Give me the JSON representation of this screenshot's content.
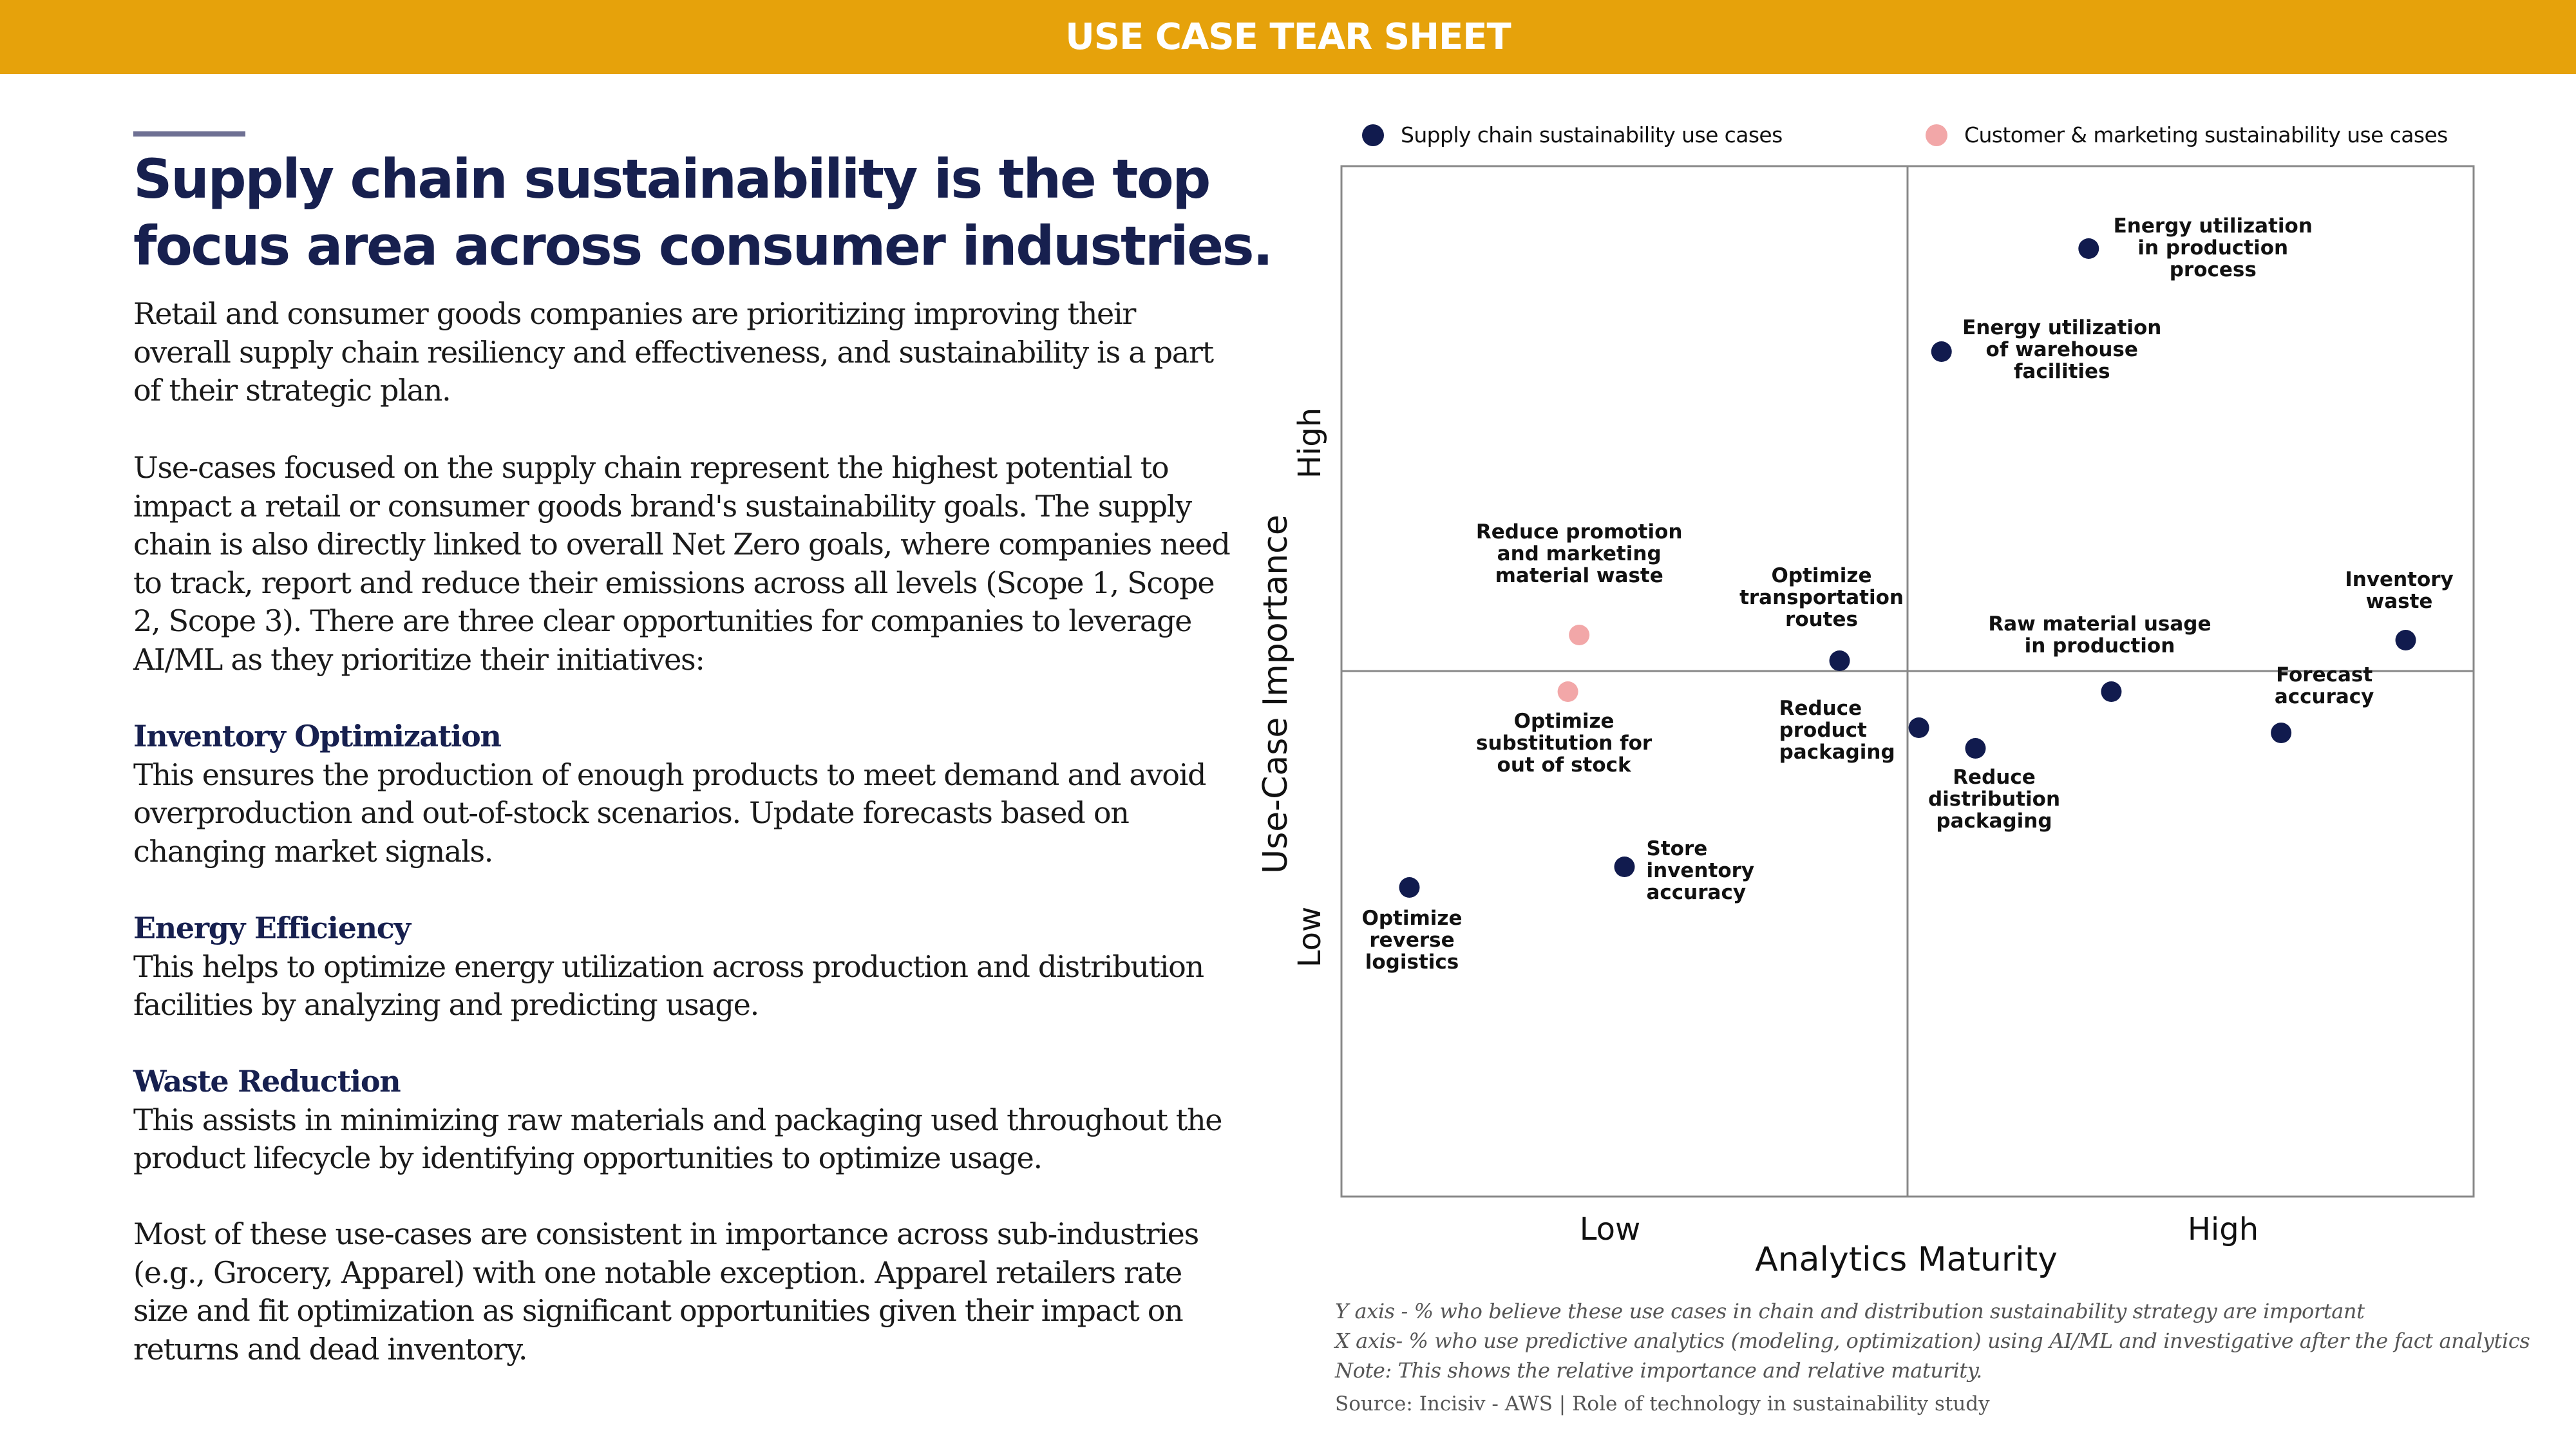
{
  "banner": {
    "title": "USE CASE TEAR SHEET",
    "color": "#E6A20B"
  },
  "headline": "Supply chain sustainability is the top focus area across consumer industries.",
  "body": {
    "intro": "Retail and consumer goods companies are prioritizing improving their overall supply chain resiliency and effectiveness, and sustainability is a part of their strategic plan.",
    "supply_chain": "Use-cases focused on the supply chain represent the highest potential to impact a retail or consumer goods brand's sustainability goals. The supply chain is also directly linked to overall Net Zero goals, where companies need to track, report and reduce their emissions across all levels (Scope 1, Scope 2, Scope 3). There are three clear opportunities for companies to leverage AI/ML as they prioritize their initiatives:",
    "sections": [
      {
        "title": "Inventory Optimization",
        "text": "This ensures the production of enough products to meet demand and avoid overproduction and out-of-stock scenarios. Update forecasts based on changing market signals."
      },
      {
        "title": "Energy Efficiency",
        "text": "This helps to optimize energy utilization across production and distribution facilities by analyzing and predicting usage."
      },
      {
        "title": "Waste Reduction",
        "text": "This assists in minimizing raw materials and packaging used throughout the product lifecycle by identifying opportunities to optimize usage."
      }
    ],
    "closing": "Most of these use-cases are consistent in importance across sub-industries (e.g., Grocery, Apparel) with one notable exception. Apparel retailers rate size and fit optimization as significant opportunities given their impact on returns and dead inventory."
  },
  "legend": [
    {
      "label": "Supply chain sustainability use cases",
      "color": "#111B4E"
    },
    {
      "label": "Customer & marketing sustainability use cases",
      "color": "#F2A7A8"
    }
  ],
  "chart_data": {
    "type": "scatter",
    "title": "",
    "xlabel": "Analytics Maturity",
    "ylabel": "Use-Case Importance",
    "x_ticks": [
      "Low",
      "High"
    ],
    "y_ticks": [
      "Low",
      "High"
    ],
    "xlim": [
      0,
      100
    ],
    "ylim": [
      0,
      100
    ],
    "quadrant_divider": {
      "x": 50,
      "y": 51
    },
    "grid": false,
    "legend_position": "top",
    "series": [
      {
        "name": "Supply chain sustainability use cases",
        "color": "#111B4E",
        "points": [
          {
            "label": "Energy utilization in production process",
            "x": 66,
            "y": 92
          },
          {
            "label": "Energy utilization of warehouse facilities",
            "x": 53,
            "y": 82
          },
          {
            "label": "Inventory waste",
            "x": 94,
            "y": 54
          },
          {
            "label": "Optimize transportation routes",
            "x": 44,
            "y": 52
          },
          {
            "label": "Raw material usage in production",
            "x": 68,
            "y": 49
          },
          {
            "label": "Forecast accuracy",
            "x": 83,
            "y": 45
          },
          {
            "label": "Reduce product packaging",
            "x": 51,
            "y": 45.5
          },
          {
            "label": "Reduce distribution packaging",
            "x": 56,
            "y": 43.5
          },
          {
            "label": "Store inventory accuracy",
            "x": 25,
            "y": 32
          },
          {
            "label": "Optimize reverse logistics",
            "x": 6,
            "y": 30
          }
        ]
      },
      {
        "name": "Customer & marketing sustainability use cases",
        "color": "#F2A7A8",
        "points": [
          {
            "label": "Reduce promotion and marketing material waste",
            "x": 21,
            "y": 54.5
          },
          {
            "label": "Optimize substitution for out of stock",
            "x": 20,
            "y": 49
          }
        ]
      }
    ]
  },
  "footnotes": [
    "Y axis - % who believe these use cases in chain and distribution sustainability strategy are important",
    "X axis- % who use predictive analytics (modeling, optimization) using AI/ML and investigative after the fact analytics",
    "Note: This shows the relative importance and relative maturity."
  ],
  "source": "Source: Incisiv - AWS | Role of technology in sustainability study"
}
